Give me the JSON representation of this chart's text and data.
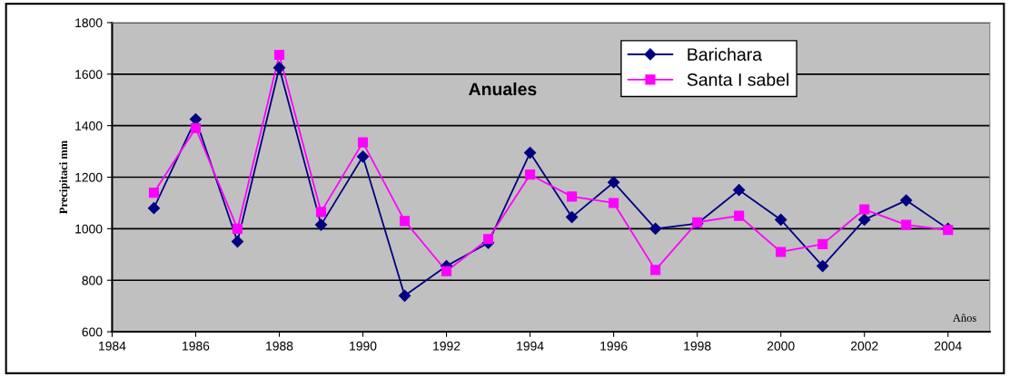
{
  "chart_data": {
    "type": "line",
    "title": "Anuales",
    "xlabel": "Años",
    "ylabel": "Precipitaci mm",
    "x": [
      1985,
      1986,
      1987,
      1988,
      1989,
      1990,
      1991,
      1992,
      1993,
      1994,
      1995,
      1996,
      1997,
      1998,
      1999,
      2000,
      2001,
      2002,
      2003,
      2004
    ],
    "series": [
      {
        "name": "Barichara",
        "color": "#000080",
        "marker": "diamond",
        "values": [
          1080,
          1425,
          950,
          1625,
          1015,
          1280,
          740,
          855,
          945,
          1295,
          1045,
          1180,
          1000,
          1020,
          1150,
          1035,
          855,
          1035,
          1110,
          1000
        ]
      },
      {
        "name": "Santa I sabel",
        "color": "#ff00ff",
        "marker": "square",
        "values": [
          1140,
          1390,
          1000,
          1675,
          1065,
          1335,
          1030,
          835,
          960,
          1210,
          1125,
          1100,
          840,
          1025,
          1050,
          910,
          940,
          1075,
          1015,
          995
        ]
      }
    ],
    "xlim": [
      1984,
      2005
    ],
    "xticks": [
      1984,
      1986,
      1988,
      1990,
      1992,
      1994,
      1996,
      1998,
      2000,
      2002,
      2004
    ],
    "ylim": [
      600,
      1800
    ],
    "yticks": [
      600,
      800,
      1000,
      1200,
      1400,
      1600,
      1800
    ],
    "grid": "y",
    "legend": "top right",
    "line_style": "solid"
  }
}
